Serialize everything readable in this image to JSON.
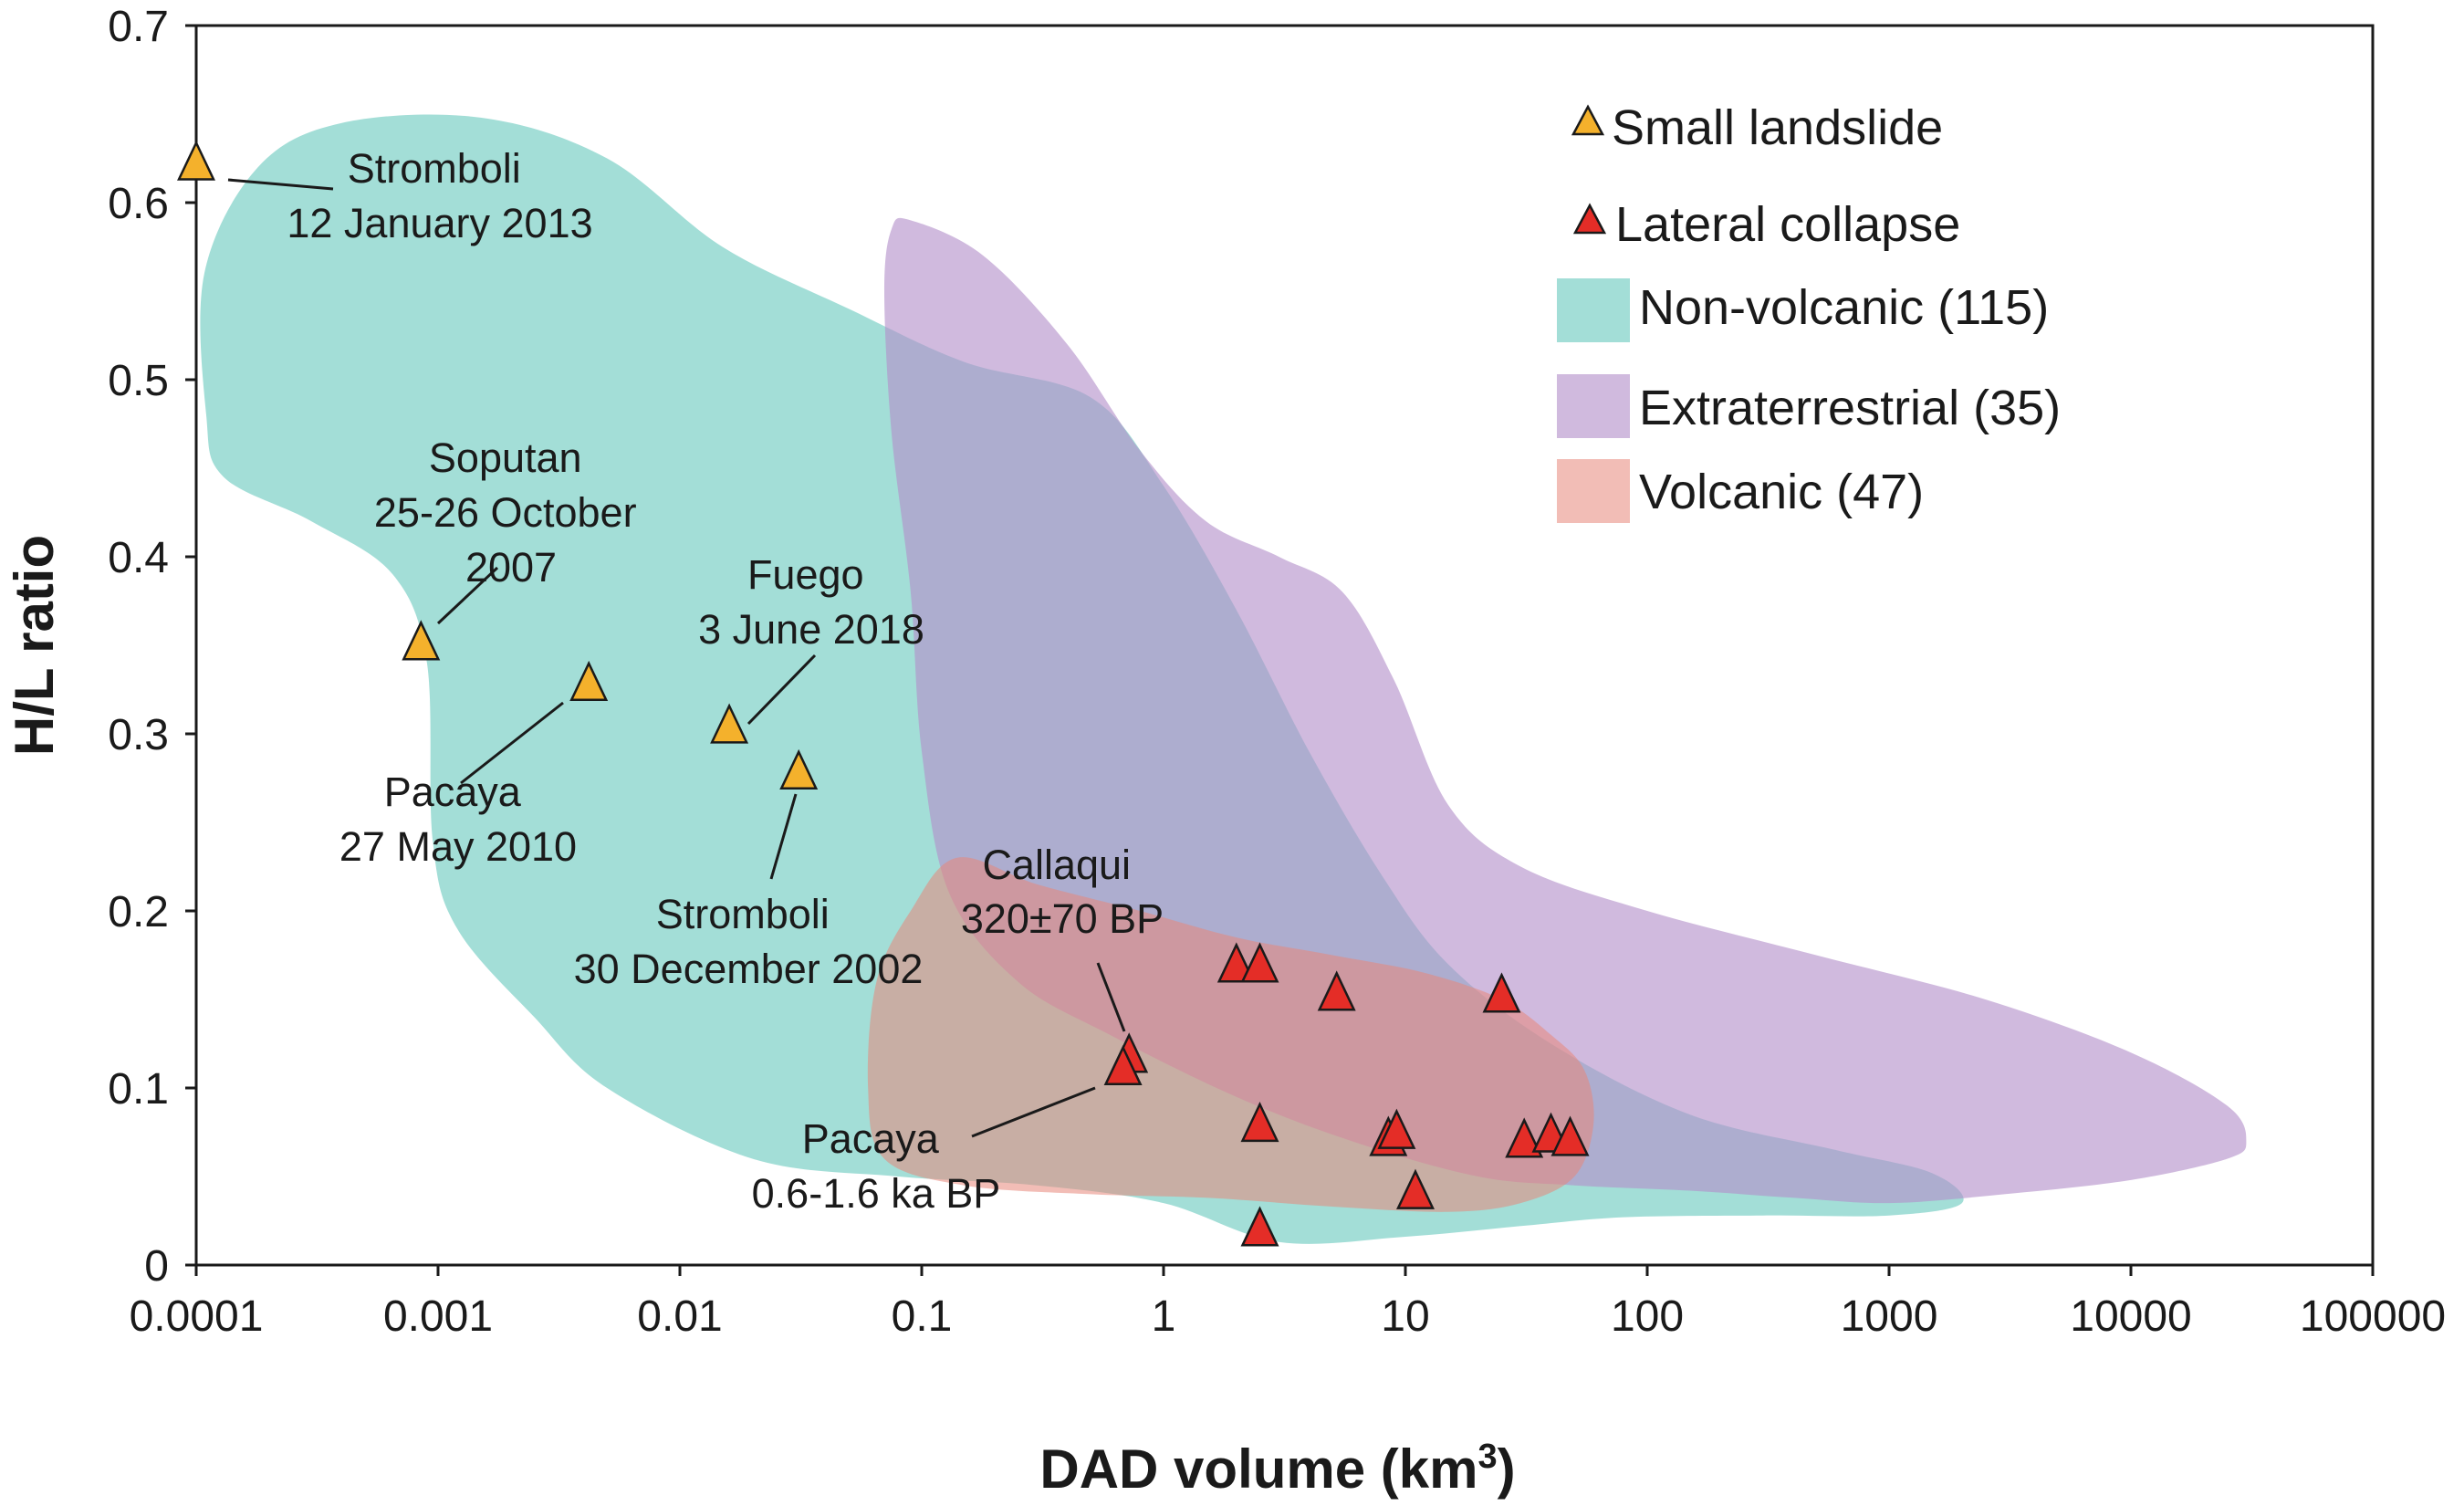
{
  "chart_data": {
    "type": "scatter",
    "x_scale": "log",
    "xlabel_main": "DAD volume (km",
    "xlabel_sup": "3",
    "xlabel_close": ")",
    "ylabel": "H/L ratio",
    "xlim": [
      0.0001,
      100000
    ],
    "ylim": [
      0,
      0.7
    ],
    "x_ticks": [
      {
        "value": 0.0001,
        "label": "0.0001"
      },
      {
        "value": 0.001,
        "label": "0.001"
      },
      {
        "value": 0.01,
        "label": "0.01"
      },
      {
        "value": 0.1,
        "label": "0.1"
      },
      {
        "value": 1,
        "label": "1"
      },
      {
        "value": 10,
        "label": "10"
      },
      {
        "value": 100,
        "label": "100"
      },
      {
        "value": 1000,
        "label": "1000"
      },
      {
        "value": 10000,
        "label": "10000"
      },
      {
        "value": 100000,
        "label": "100000"
      }
    ],
    "y_ticks": [
      {
        "value": 0,
        "label": "0"
      },
      {
        "value": 0.1,
        "label": "0.1"
      },
      {
        "value": 0.2,
        "label": "0.2"
      },
      {
        "value": 0.3,
        "label": "0.3"
      },
      {
        "value": 0.4,
        "label": "0.4"
      },
      {
        "value": 0.5,
        "label": "0.5"
      },
      {
        "value": 0.6,
        "label": "0.6"
      },
      {
        "value": 0.7,
        "label": "0.7"
      }
    ],
    "regions": [
      {
        "name": "non-volcanic",
        "label": "Non-volcanic (115)",
        "color": "#7fd1c7",
        "opacity": 0.72,
        "outline": [
          [
            0.00011,
            0.48
          ],
          [
            0.000108,
            0.56
          ],
          [
            0.00018,
            0.62
          ],
          [
            0.0004,
            0.645
          ],
          [
            0.0015,
            0.648
          ],
          [
            0.005,
            0.625
          ],
          [
            0.015,
            0.575
          ],
          [
            0.05,
            0.54
          ],
          [
            0.15,
            0.51
          ],
          [
            0.5,
            0.49
          ],
          [
            1,
            0.44
          ],
          [
            2,
            0.37
          ],
          [
            4,
            0.29
          ],
          [
            8,
            0.22
          ],
          [
            15,
            0.17
          ],
          [
            40,
            0.125
          ],
          [
            150,
            0.085
          ],
          [
            600,
            0.065
          ],
          [
            1500,
            0.052
          ],
          [
            2000,
            0.035
          ],
          [
            1000,
            0.028
          ],
          [
            300,
            0.028
          ],
          [
            80,
            0.027
          ],
          [
            30,
            0.022
          ],
          [
            10,
            0.016
          ],
          [
            3,
            0.013
          ],
          [
            1,
            0.035
          ],
          [
            0.3,
            0.045
          ],
          [
            0.08,
            0.05
          ],
          [
            0.02,
            0.06
          ],
          [
            0.005,
            0.1
          ],
          [
            0.0025,
            0.14
          ],
          [
            0.0012,
            0.19
          ],
          [
            0.00095,
            0.24
          ],
          [
            0.0009,
            0.34
          ],
          [
            0.00065,
            0.39
          ],
          [
            0.0003,
            0.42
          ],
          [
            0.00013,
            0.445
          ]
        ]
      },
      {
        "name": "extraterrestrial",
        "label": "Extraterrestrial (35)",
        "color": "#b38fc9",
        "opacity": 0.62,
        "outline": [
          [
            0.075,
            0.585
          ],
          [
            0.09,
            0.59
          ],
          [
            0.18,
            0.57
          ],
          [
            0.4,
            0.52
          ],
          [
            0.8,
            0.46
          ],
          [
            1.5,
            0.42
          ],
          [
            3,
            0.4
          ],
          [
            5.5,
            0.38
          ],
          [
            9,
            0.33
          ],
          [
            15,
            0.26
          ],
          [
            30,
            0.225
          ],
          [
            100,
            0.2
          ],
          [
            500,
            0.175
          ],
          [
            2500,
            0.15
          ],
          [
            10000,
            0.12
          ],
          [
            25000,
            0.09
          ],
          [
            30000,
            0.07
          ],
          [
            25000,
            0.06
          ],
          [
            10000,
            0.048
          ],
          [
            3000,
            0.04
          ],
          [
            1000,
            0.035
          ],
          [
            400,
            0.038
          ],
          [
            150,
            0.042
          ],
          [
            50,
            0.045
          ],
          [
            20,
            0.05
          ],
          [
            6,
            0.07
          ],
          [
            2,
            0.095
          ],
          [
            0.6,
            0.13
          ],
          [
            0.25,
            0.16
          ],
          [
            0.13,
            0.21
          ],
          [
            0.1,
            0.29
          ],
          [
            0.09,
            0.38
          ],
          [
            0.075,
            0.47
          ],
          [
            0.07,
            0.55
          ]
        ]
      },
      {
        "name": "volcanic",
        "label": "Volcanic (47)",
        "color": "#e8877a",
        "opacity": 0.55,
        "outline": [
          [
            0.14,
            0.23
          ],
          [
            0.3,
            0.215
          ],
          [
            0.8,
            0.2
          ],
          [
            2,
            0.185
          ],
          [
            5,
            0.175
          ],
          [
            12,
            0.165
          ],
          [
            25,
            0.15
          ],
          [
            40,
            0.13
          ],
          [
            55,
            0.11
          ],
          [
            60,
            0.08
          ],
          [
            50,
            0.05
          ],
          [
            30,
            0.035
          ],
          [
            15,
            0.03
          ],
          [
            5,
            0.033
          ],
          [
            1.5,
            0.038
          ],
          [
            0.5,
            0.04
          ],
          [
            0.15,
            0.045
          ],
          [
            0.07,
            0.06
          ],
          [
            0.06,
            0.1
          ],
          [
            0.065,
            0.16
          ],
          [
            0.09,
            0.2
          ]
        ]
      }
    ],
    "series": [
      {
        "name": "Small landslide",
        "marker_color": "#f4b12c",
        "points": [
          {
            "x": 0.0001,
            "y": 0.621
          },
          {
            "x": 0.00085,
            "y": 0.35
          },
          {
            "x": 0.0042,
            "y": 0.327
          },
          {
            "x": 0.016,
            "y": 0.303
          },
          {
            "x": 0.031,
            "y": 0.277
          }
        ]
      },
      {
        "name": "Lateral collapse",
        "marker_color": "#e42d27",
        "points": [
          {
            "x": 2.0,
            "y": 0.168
          },
          {
            "x": 2.5,
            "y": 0.168
          },
          {
            "x": 5.2,
            "y": 0.152
          },
          {
            "x": 25,
            "y": 0.151
          },
          {
            "x": 0.72,
            "y": 0.117
          },
          {
            "x": 0.68,
            "y": 0.11
          },
          {
            "x": 2.5,
            "y": 0.078
          },
          {
            "x": 8.5,
            "y": 0.07
          },
          {
            "x": 9.2,
            "y": 0.074
          },
          {
            "x": 11,
            "y": 0.04
          },
          {
            "x": 31,
            "y": 0.069
          },
          {
            "x": 40,
            "y": 0.072
          },
          {
            "x": 48,
            "y": 0.07
          },
          {
            "x": 2.5,
            "y": 0.019
          }
        ]
      }
    ],
    "annotations": [
      {
        "lines": [
          "Stromboli",
          "12 January 2013"
        ]
      },
      {
        "lines": [
          "Soputan",
          "25-26 October",
          "2007"
        ]
      },
      {
        "lines": [
          "Fuego",
          "3 June 2018"
        ]
      },
      {
        "lines": [
          "Pacaya",
          "27 May 2010"
        ]
      },
      {
        "lines": [
          "Stromboli",
          "30 December 2002"
        ]
      },
      {
        "lines": [
          "Callaqui",
          "320±70 BP"
        ]
      },
      {
        "lines": [
          "Pacaya",
          "0.6-1.6 ka BP"
        ]
      }
    ],
    "legend": {
      "position": "top-right",
      "items": [
        {
          "kind": "marker",
          "label": "Small landslide",
          "color": "#f4b12c"
        },
        {
          "kind": "marker",
          "label": "Lateral collapse",
          "color": "#e42d27"
        },
        {
          "kind": "swatch",
          "label": "Non-volcanic (115)",
          "color": "#7fd1c7"
        },
        {
          "kind": "swatch",
          "label": "Extraterrestrial (35)",
          "color": "#b38fc9"
        },
        {
          "kind": "swatch",
          "label": "Volcanic (47)",
          "color": "#e8877a"
        }
      ]
    }
  }
}
